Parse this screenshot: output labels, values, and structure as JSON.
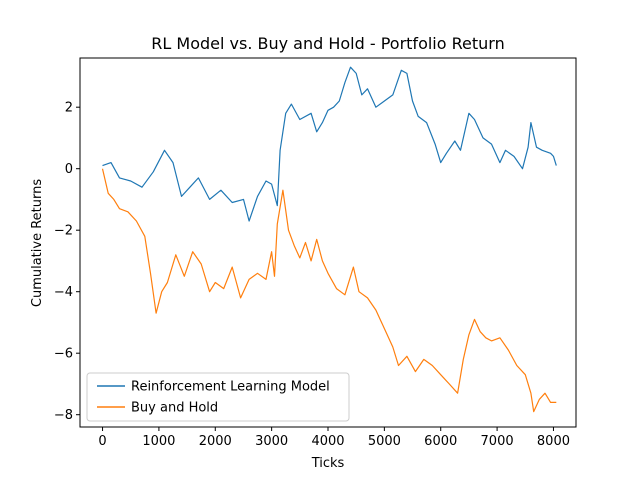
{
  "chart_data": {
    "type": "line",
    "title": "RL Model vs. Buy and Hold - Portfolio Return",
    "xlabel": "Ticks",
    "ylabel": "Cumulative Returns",
    "xlim": [
      -400,
      8400
    ],
    "ylim": [
      -8.4,
      3.6
    ],
    "xticks": [
      0,
      1000,
      2000,
      3000,
      4000,
      5000,
      6000,
      7000,
      8000
    ],
    "yticks": [
      -8,
      -6,
      -4,
      -2,
      0,
      2
    ],
    "grid": false,
    "legend_position": "lower-left",
    "series": [
      {
        "name": "Reinforcement Learning Model",
        "color": "#1f77b4",
        "x": [
          0,
          150,
          300,
          500,
          700,
          900,
          1100,
          1250,
          1400,
          1550,
          1700,
          1900,
          2100,
          2300,
          2500,
          2600,
          2750,
          2900,
          3000,
          3100,
          3150,
          3250,
          3350,
          3500,
          3700,
          3800,
          3900,
          4000,
          4100,
          4200,
          4300,
          4400,
          4500,
          4600,
          4700,
          4850,
          5000,
          5150,
          5300,
          5400,
          5500,
          5600,
          5750,
          5900,
          6000,
          6100,
          6250,
          6350,
          6500,
          6600,
          6750,
          6900,
          7050,
          7150,
          7300,
          7450,
          7550,
          7600,
          7700,
          7800,
          7950,
          8000,
          8050
        ],
        "values": [
          0.1,
          0.2,
          -0.3,
          -0.4,
          -0.6,
          -0.1,
          0.6,
          0.2,
          -0.9,
          -0.6,
          -0.3,
          -1.0,
          -0.7,
          -1.1,
          -1.0,
          -1.7,
          -0.9,
          -0.4,
          -0.5,
          -1.2,
          0.6,
          1.8,
          2.1,
          1.6,
          1.8,
          1.2,
          1.5,
          1.9,
          2.0,
          2.2,
          2.8,
          3.3,
          3.1,
          2.4,
          2.6,
          2.0,
          2.2,
          2.4,
          3.2,
          3.1,
          2.2,
          1.7,
          1.5,
          0.8,
          0.2,
          0.5,
          0.9,
          0.6,
          1.8,
          1.6,
          1.0,
          0.8,
          0.2,
          0.6,
          0.4,
          0.0,
          0.7,
          1.5,
          0.7,
          0.6,
          0.5,
          0.4,
          0.1
        ]
      },
      {
        "name": "Buy and Hold",
        "color": "#ff7f0e",
        "x": [
          0,
          100,
          200,
          300,
          450,
          600,
          750,
          850,
          950,
          1050,
          1150,
          1300,
          1450,
          1600,
          1750,
          1900,
          2000,
          2150,
          2300,
          2450,
          2600,
          2750,
          2900,
          3000,
          3050,
          3100,
          3200,
          3300,
          3400,
          3500,
          3600,
          3700,
          3800,
          3900,
          4000,
          4150,
          4300,
          4450,
          4550,
          4700,
          4850,
          5000,
          5150,
          5250,
          5400,
          5550,
          5700,
          5850,
          6000,
          6150,
          6300,
          6400,
          6500,
          6600,
          6700,
          6800,
          6900,
          7050,
          7200,
          7350,
          7500,
          7600,
          7650,
          7750,
          7850,
          7950,
          8050
        ],
        "values": [
          0.0,
          -0.8,
          -1.0,
          -1.3,
          -1.4,
          -1.7,
          -2.2,
          -3.4,
          -4.7,
          -4.0,
          -3.7,
          -2.8,
          -3.5,
          -2.7,
          -3.1,
          -4.0,
          -3.7,
          -3.9,
          -3.2,
          -4.2,
          -3.6,
          -3.4,
          -3.6,
          -2.7,
          -3.5,
          -1.8,
          -0.7,
          -2.0,
          -2.5,
          -2.9,
          -2.4,
          -3.0,
          -2.3,
          -3.0,
          -3.4,
          -3.9,
          -4.1,
          -3.2,
          -4.0,
          -4.2,
          -4.6,
          -5.2,
          -5.8,
          -6.4,
          -6.1,
          -6.6,
          -6.2,
          -6.4,
          -6.7,
          -7.0,
          -7.3,
          -6.2,
          -5.4,
          -4.9,
          -5.3,
          -5.5,
          -5.6,
          -5.5,
          -5.9,
          -6.4,
          -6.7,
          -7.3,
          -7.9,
          -7.5,
          -7.3,
          -7.6,
          -7.6
        ]
      }
    ]
  }
}
